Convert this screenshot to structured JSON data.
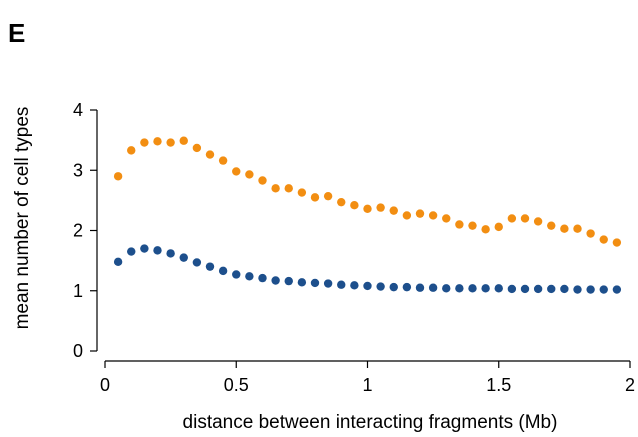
{
  "chart_data": {
    "type": "scatter",
    "panel_label": "E",
    "title": "",
    "xlabel": "distance between interacting fragments (Mb)",
    "ylabel": "mean number of cell types",
    "xlim": [
      0,
      2
    ],
    "ylim": [
      0,
      4
    ],
    "x_ticks": [
      0,
      0.5,
      1,
      1.5,
      2
    ],
    "x_tick_labels": [
      "0",
      "0.5",
      "1",
      "1.5",
      "2"
    ],
    "y_ticks": [
      0,
      1,
      2,
      3,
      4
    ],
    "y_tick_labels": [
      "0",
      "1",
      "2",
      "3",
      "4"
    ],
    "grid": false,
    "legend": "none",
    "x": [
      0.05,
      0.1,
      0.15,
      0.2,
      0.25,
      0.3,
      0.35,
      0.4,
      0.45,
      0.5,
      0.55,
      0.6,
      0.65,
      0.7,
      0.75,
      0.8,
      0.85,
      0.9,
      0.95,
      1.0,
      1.05,
      1.1,
      1.15,
      1.2,
      1.25,
      1.3,
      1.35,
      1.4,
      1.45,
      1.5,
      1.55,
      1.6,
      1.65,
      1.7,
      1.75,
      1.8,
      1.85,
      1.9,
      1.95
    ],
    "series": [
      {
        "color": "#f28e12",
        "values": [
          2.9,
          3.33,
          3.46,
          3.48,
          3.46,
          3.49,
          3.37,
          3.26,
          3.16,
          2.98,
          2.93,
          2.83,
          2.7,
          2.7,
          2.63,
          2.55,
          2.57,
          2.47,
          2.42,
          2.36,
          2.38,
          2.33,
          2.25,
          2.28,
          2.25,
          2.2,
          2.1,
          2.08,
          2.02,
          2.06,
          2.2,
          2.2,
          2.15,
          2.08,
          2.03,
          2.03,
          1.95,
          1.85,
          1.8
        ]
      },
      {
        "color": "#1d4f8c",
        "values": [
          1.48,
          1.65,
          1.7,
          1.67,
          1.62,
          1.55,
          1.47,
          1.4,
          1.33,
          1.27,
          1.24,
          1.21,
          1.17,
          1.16,
          1.14,
          1.13,
          1.12,
          1.1,
          1.09,
          1.08,
          1.07,
          1.06,
          1.06,
          1.05,
          1.05,
          1.04,
          1.04,
          1.04,
          1.04,
          1.04,
          1.03,
          1.03,
          1.03,
          1.03,
          1.03,
          1.02,
          1.02,
          1.02,
          1.02
        ]
      }
    ]
  }
}
